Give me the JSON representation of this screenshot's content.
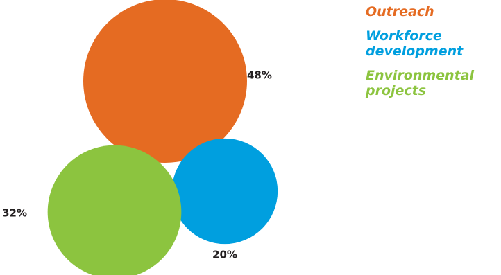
{
  "chart_data": {
    "type": "bubble",
    "legend_position": "right",
    "series": [
      {
        "name": "Outreach",
        "value": 48,
        "label": "48%",
        "color": "#e56b22"
      },
      {
        "name": "Workforce\ndevelopment",
        "value": 20,
        "label": "20%",
        "color": "#009fdf"
      },
      {
        "name": "Environmental\nprojects",
        "value": 32,
        "label": "32%",
        "color": "#8cc43f"
      }
    ]
  }
}
